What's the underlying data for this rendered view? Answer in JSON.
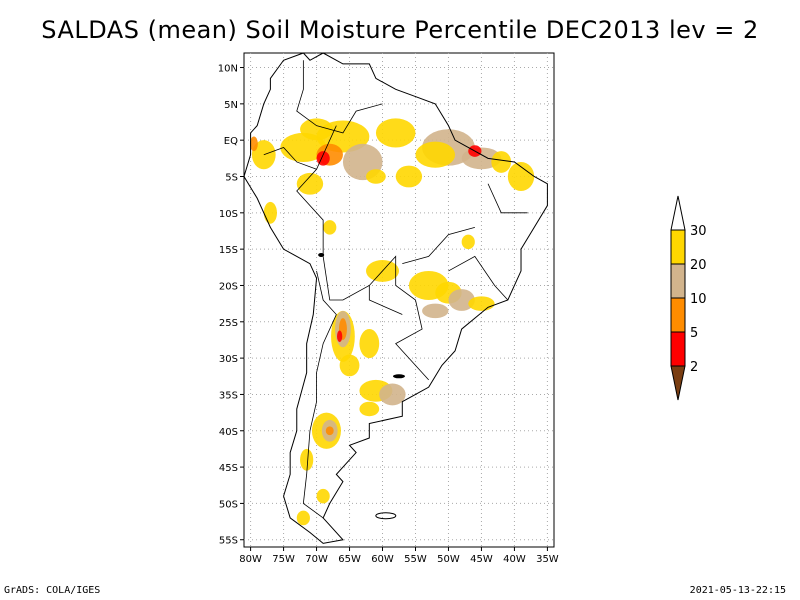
{
  "title": "SALDAS (mean) Soil Moisture Percentile DEC2013 lev = 2",
  "footer": {
    "left": "GrADS: COLA/IGES",
    "right": "2021-05-13-22:15"
  },
  "map": {
    "lat_labels": [
      "10N",
      "5N",
      "EQ",
      "5S",
      "10S",
      "15S",
      "20S",
      "25S",
      "30S",
      "35S",
      "40S",
      "45S",
      "50S",
      "55S"
    ],
    "lat_values": [
      10,
      5,
      0,
      -5,
      -10,
      -15,
      -20,
      -25,
      -30,
      -35,
      -40,
      -45,
      -50,
      -55
    ],
    "lon_labels": [
      "80W",
      "75W",
      "70W",
      "65W",
      "60W",
      "55W",
      "50W",
      "45W",
      "40W",
      "35W"
    ],
    "lon_values": [
      -80,
      -75,
      -70,
      -65,
      -60,
      -55,
      -50,
      -45,
      -40,
      -35
    ],
    "lon_range": [
      -81,
      -34
    ],
    "lat_range": [
      -56,
      12
    ]
  },
  "colorbar": {
    "labels": [
      "2",
      "5",
      "10",
      "20",
      "30"
    ],
    "colors": [
      "#7a3e12",
      "#ff0000",
      "#ff8c00",
      "#d2b48c",
      "#ffd700"
    ],
    "top_color": "#ffffff"
  },
  "palette": {
    "dry2": "#ff0000",
    "dry5": "#ff8c00",
    "dry10": "#d2b48c",
    "dry20": "#ffd700",
    "dry30": "#ffd700"
  }
}
